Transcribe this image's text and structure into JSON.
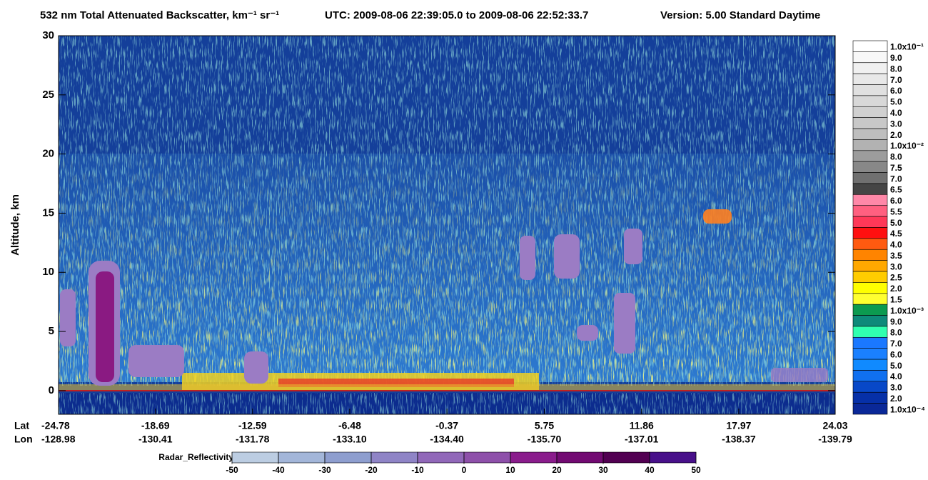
{
  "chart_data": {
    "type": "curtain",
    "title": "532 nm Total Attenuated Backscatter, km⁻¹ sr⁻¹",
    "utc": "UTC:  2009-08-06 22:39:05.0  to  2009-08-06 22:52:33.7",
    "version": "Version: 5.00  Standard  Daytime",
    "ylabel": "Altitude, km",
    "ylim": [
      -2,
      30
    ],
    "yticks": [
      0,
      5,
      10,
      15,
      20,
      25,
      30
    ],
    "x_row_labels": [
      "Lat",
      "Lon"
    ],
    "xlim": [
      -24.78,
      24.03
    ],
    "lat_ticks": [
      -24.78,
      -18.69,
      -12.59,
      -6.48,
      -0.37,
      5.75,
      11.86,
      17.97,
      24.03
    ],
    "lon_ticks": [
      -128.98,
      -130.41,
      -131.78,
      {
        "value": -133.1,
        "label": "-133.10"
      },
      {
        "value": -134.4,
        "label": "-134.40"
      },
      {
        "value": -135.7,
        "label": "-135.70"
      },
      -137.01,
      -138.37,
      -139.79
    ],
    "colorbar": {
      "labels": [
        "1.0x10⁻¹",
        "9.0",
        "8.0",
        "7.0",
        "6.0",
        "5.0",
        "4.0",
        "3.0",
        "2.0",
        "1.0x10⁻²",
        "8.0",
        "7.5",
        "7.0",
        "6.5",
        "6.0",
        "5.5",
        "5.0",
        "4.5",
        "4.0",
        "3.5",
        "3.0",
        "2.5",
        "2.0",
        "1.5",
        "1.0x10⁻³",
        "9.0",
        "8.0",
        "7.0",
        "6.0",
        "5.0",
        "4.0",
        "3.0",
        "2.0",
        "1.0x10⁻⁴"
      ],
      "colors": [
        "#ffffff",
        "#f8f8f8",
        "#f0f0f0",
        "#e8e8e8",
        "#e0e0e0",
        "#d8d8d8",
        "#d0d0d0",
        "#c8c8c8",
        "#bebebe",
        "#b2b2b2",
        "#9c9c9c",
        "#888888",
        "#707070",
        "#454545",
        "#ff88a8",
        "#ff6080",
        "#ff3858",
        "#ff1010",
        "#ff5a10",
        "#ff8400",
        "#ffa800",
        "#ffcc00",
        "#ffff00",
        "#ffff30",
        "#0c9a50",
        "#0e8a7a",
        "#30ffb0",
        "#1a78ff",
        "#1a80ff",
        "#108aff",
        "#1070f0",
        "#0848c8",
        "#0630a8",
        "#0a2898"
      ]
    },
    "radar": {
      "title": "Radar_Reflectivity",
      "ticks": [
        -50,
        -40,
        -30,
        -20,
        -10,
        0,
        10,
        20,
        30,
        40,
        50
      ],
      "colors": [
        "#bccde2",
        "#a3b6d9",
        "#8e9ecf",
        "#8f84c6",
        "#9168b9",
        "#8e50aa",
        "#8a1c8c",
        "#720a72",
        "#520052",
        "#48108a"
      ]
    }
  }
}
